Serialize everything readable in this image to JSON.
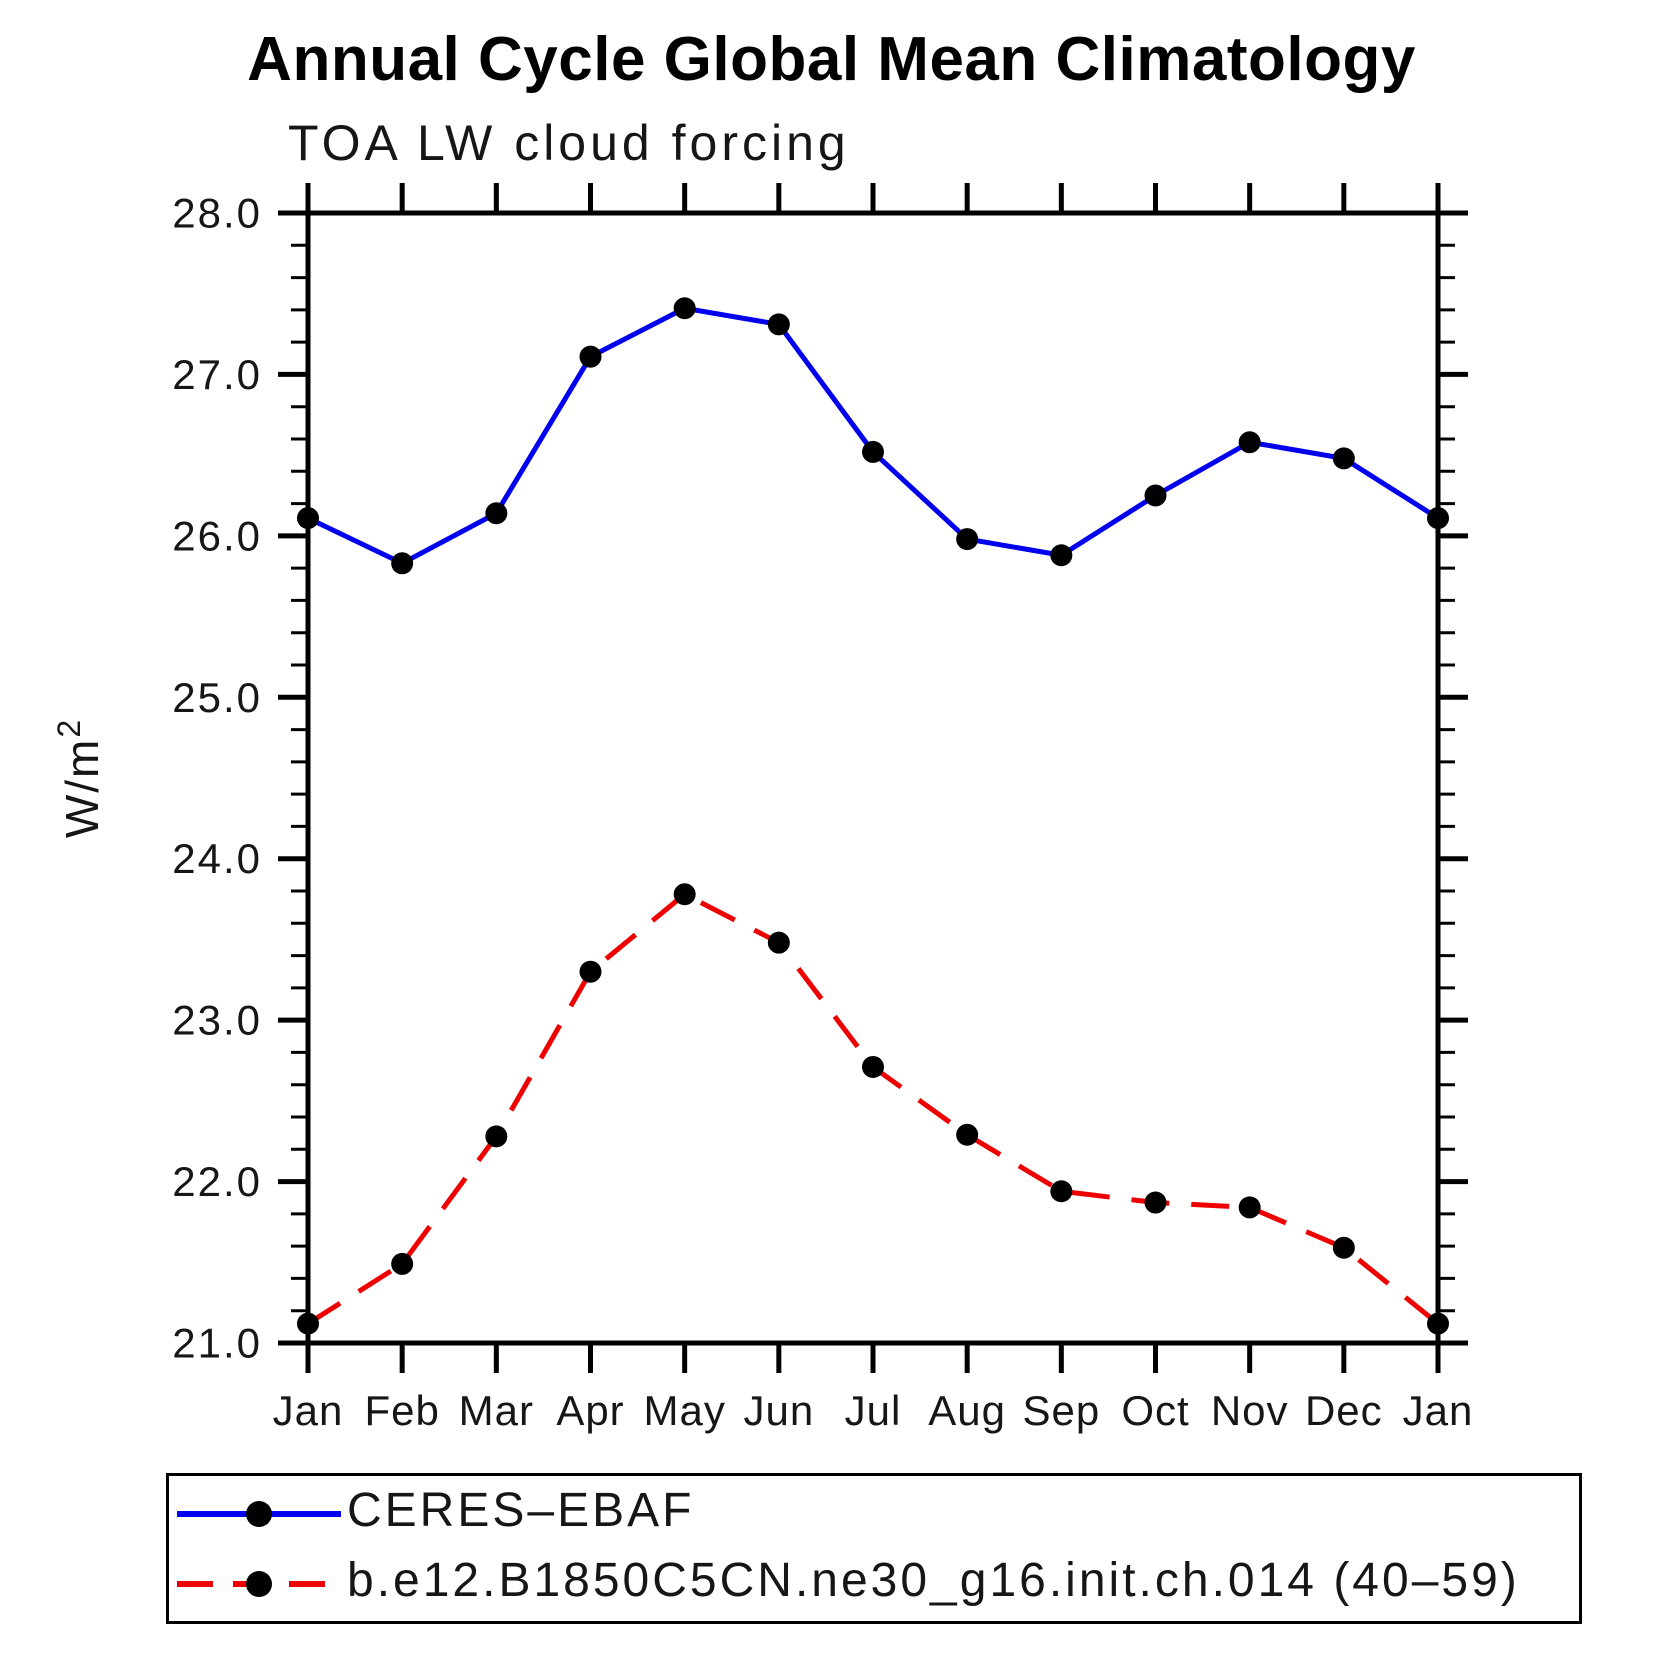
{
  "title": "Annual Cycle Global Mean Climatology",
  "subtitle": "TOA LW cloud forcing",
  "chart_data": {
    "type": "line",
    "title": "Annual Cycle Global Mean Climatology",
    "subtitle": "TOA LW cloud forcing",
    "ylabel": {
      "base": "W/m",
      "sup": "2"
    },
    "categories": [
      "Jan",
      "Feb",
      "Mar",
      "Apr",
      "May",
      "Jun",
      "Jul",
      "Aug",
      "Sep",
      "Oct",
      "Nov",
      "Dec",
      "Jan"
    ],
    "series": [
      {
        "name": "CERES–EBAF",
        "color": "#0000ee",
        "style": "solid",
        "marker": "circle",
        "marker_color": "#000000",
        "values": [
          26.11,
          25.83,
          26.14,
          27.11,
          27.41,
          27.31,
          26.52,
          25.98,
          25.88,
          26.25,
          26.58,
          26.48,
          26.11
        ]
      },
      {
        "name": "b.e12.B1850C5CN.ne30_g16.init.ch.014 (40–59)",
        "color": "#ee0000",
        "style": "dashed",
        "marker": "circle",
        "marker_color": "#000000",
        "values": [
          21.12,
          21.49,
          22.28,
          23.3,
          23.78,
          23.48,
          22.71,
          22.29,
          21.94,
          21.87,
          21.84,
          21.59,
          21.12
        ]
      }
    ],
    "ylim": [
      21.0,
      28.0
    ],
    "yticks": {
      "values": [
        21,
        22,
        23,
        24,
        25,
        26,
        27,
        28
      ],
      "labels": [
        "21.0",
        "22.0",
        "23.0",
        "24.0",
        "25.0",
        "26.0",
        "27.0",
        "28.0"
      ],
      "minor_step": 0.2
    },
    "grid": false,
    "legend_position": "bottom",
    "axis_color": "#000000"
  }
}
